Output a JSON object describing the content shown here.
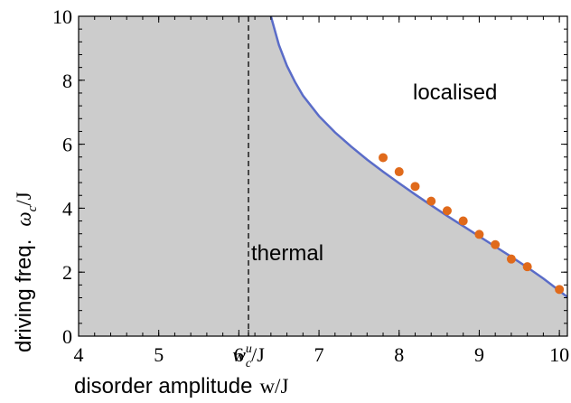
{
  "chart_data": {
    "type": "scatter",
    "title": "",
    "xlabel": {
      "text": "disorder amplitude",
      "variable": "w/J"
    },
    "ylabel": {
      "text": "driving freq.",
      "variable_main": "ω",
      "variable_sub": "c",
      "variable_tail": "/J"
    },
    "xlim": [
      4,
      10.1
    ],
    "ylim": [
      0,
      10
    ],
    "x_ticks": [
      {
        "value": 4,
        "label": "4"
      },
      {
        "value": 5,
        "label": "5"
      },
      {
        "value": 6,
        "label": "6"
      },
      {
        "value": 7,
        "label": "7"
      },
      {
        "value": 8,
        "label": "8"
      },
      {
        "value": 9,
        "label": "9"
      },
      {
        "value": 10,
        "label": "10"
      }
    ],
    "special_x_tick": {
      "value": 6.12,
      "main": "w",
      "sub": "c",
      "sup": "u",
      "tail": "/J"
    },
    "y_ticks": [
      {
        "value": 0,
        "label": "0"
      },
      {
        "value": 2,
        "label": "2"
      },
      {
        "value": 4,
        "label": "4"
      },
      {
        "value": 6,
        "label": "6"
      },
      {
        "value": 8,
        "label": "8"
      },
      {
        "value": 10,
        "label": "10"
      }
    ],
    "critical_line_x": 6.12,
    "boundary_curve": {
      "color": "#5a6cc8",
      "points": [
        [
          6.4,
          10.0
        ],
        [
          6.5,
          9.1
        ],
        [
          6.6,
          8.45
        ],
        [
          6.7,
          7.95
        ],
        [
          6.8,
          7.52
        ],
        [
          7.0,
          6.88
        ],
        [
          7.2,
          6.37
        ],
        [
          7.4,
          5.93
        ],
        [
          7.6,
          5.52
        ],
        [
          7.8,
          5.14
        ],
        [
          8.0,
          4.78
        ],
        [
          8.2,
          4.43
        ],
        [
          8.4,
          4.09
        ],
        [
          8.6,
          3.76
        ],
        [
          8.8,
          3.44
        ],
        [
          9.0,
          3.12
        ],
        [
          9.2,
          2.8
        ],
        [
          9.4,
          2.48
        ],
        [
          9.6,
          2.15
        ],
        [
          9.8,
          1.8
        ],
        [
          10.0,
          1.42
        ],
        [
          10.1,
          1.22
        ]
      ]
    },
    "series": [
      {
        "color": "#e06a1b",
        "points": [
          [
            7.8,
            5.58
          ],
          [
            8.0,
            5.14
          ],
          [
            8.2,
            4.68
          ],
          [
            8.4,
            4.22
          ],
          [
            8.6,
            3.92
          ],
          [
            8.8,
            3.6
          ],
          [
            9.0,
            3.18
          ],
          [
            9.2,
            2.86
          ],
          [
            9.4,
            2.41
          ],
          [
            9.6,
            2.17
          ],
          [
            10.0,
            1.46
          ]
        ]
      }
    ],
    "regions": {
      "thermal_label": "thermal",
      "localised_label": "localised",
      "thermal_color": "#cccccc"
    },
    "grid": false,
    "legend": "none"
  }
}
